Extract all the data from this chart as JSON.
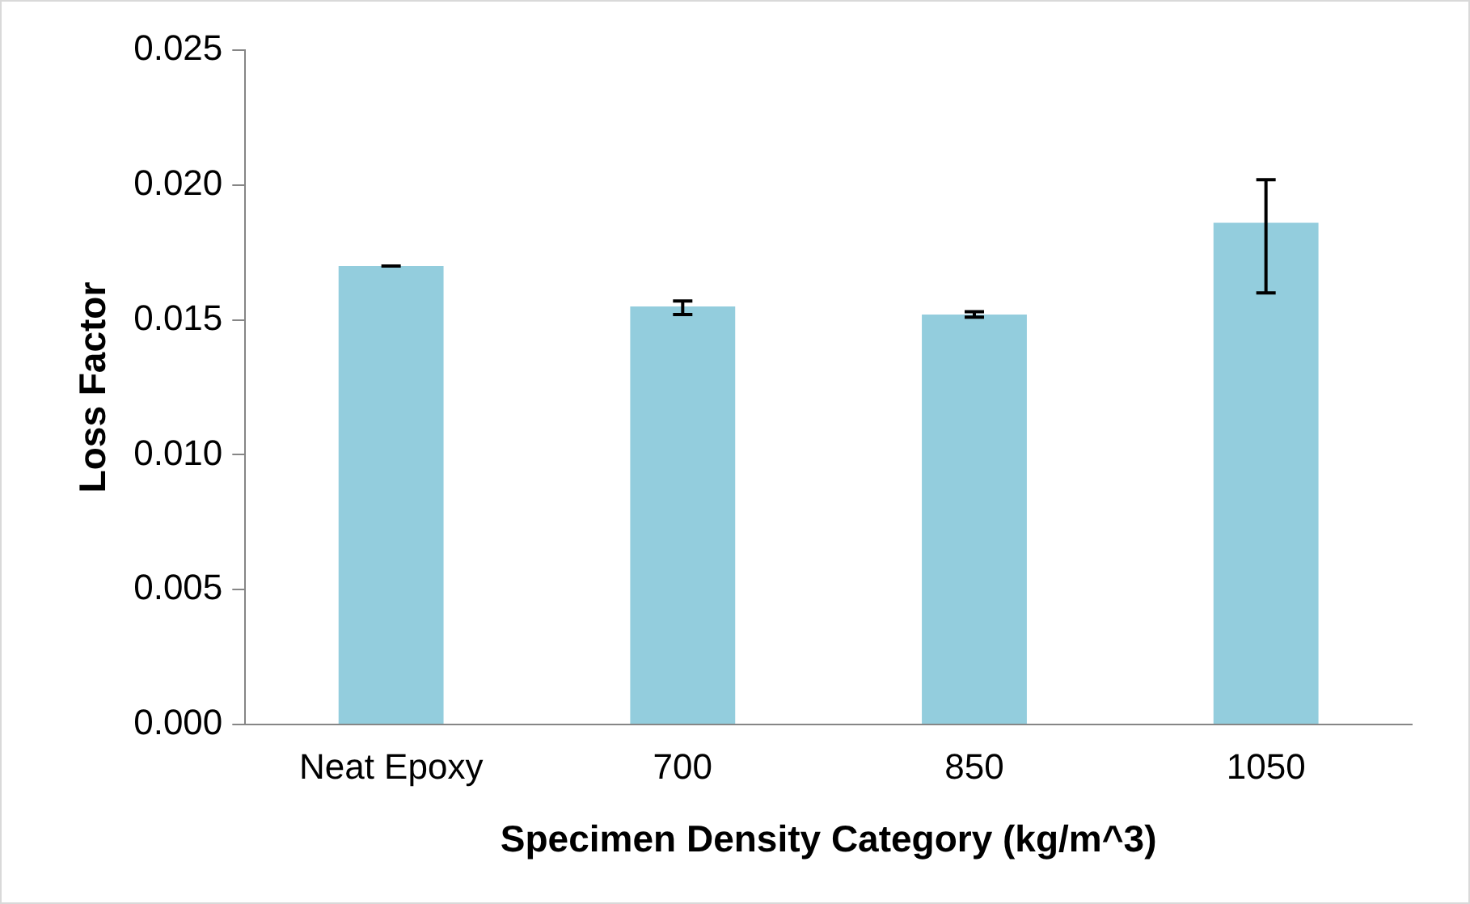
{
  "chart_data": {
    "type": "bar",
    "xlabel": "Specimen Density Category (kg/m^3)",
    "ylabel": "Loss Factor",
    "categories": [
      "Neat Epoxy",
      "700",
      "850",
      "1050"
    ],
    "values": [
      0.017,
      0.0155,
      0.0152,
      0.0186
    ],
    "errors": [
      [
        0.017,
        0.017
      ],
      [
        0.0152,
        0.0157
      ],
      [
        0.0151,
        0.0153
      ],
      [
        0.016,
        0.0202
      ]
    ],
    "color": "#93cddd",
    "ylim": [
      0,
      0.025
    ],
    "yticks": [
      {
        "value": 0,
        "label": "0.000"
      },
      {
        "value": 0.005,
        "label": "0.005"
      },
      {
        "value": 0.01,
        "label": "0.010"
      },
      {
        "value": 0.015,
        "label": "0.015"
      },
      {
        "value": 0.02,
        "label": "0.020"
      },
      {
        "value": 0.025,
        "label": "0.025"
      }
    ],
    "grid": false,
    "legend": false
  }
}
